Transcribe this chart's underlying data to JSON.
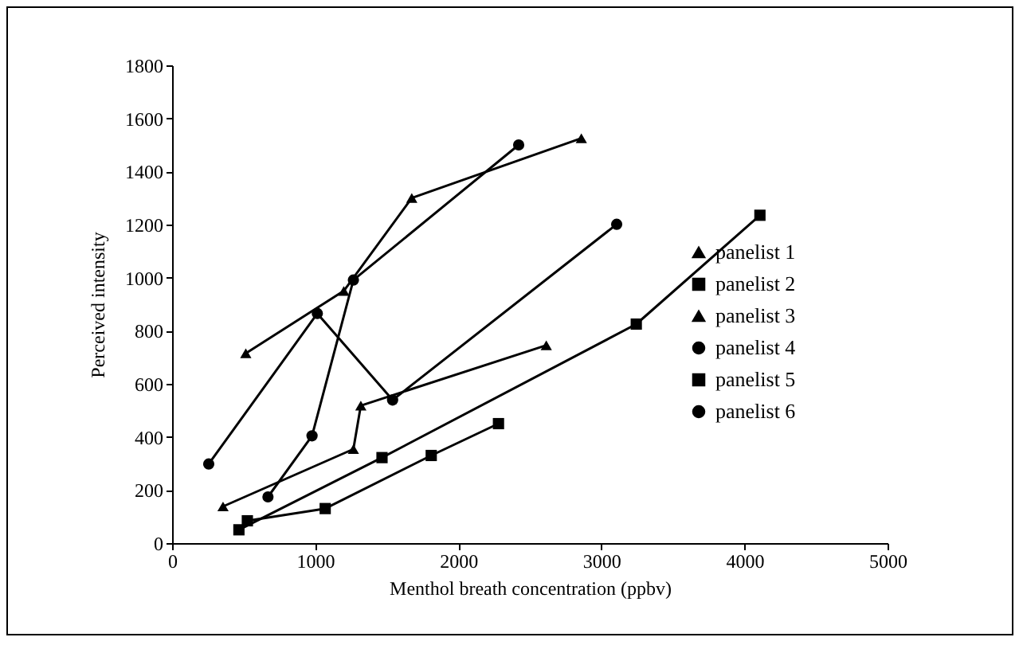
{
  "chart_data": {
    "type": "line",
    "xlabel": "Menthol breath concentration (ppbv)",
    "ylabel": "Perceived intensity",
    "xlim": [
      0,
      5000
    ],
    "xticks": [
      0,
      {
        "value": 1000,
        "label": "1000"
      },
      {
        "value": 2000,
        "label": "2000"
      },
      {
        "value": 3000,
        "label": "3000"
      },
      {
        "value": 4000,
        "label": "4000"
      },
      {
        "value": 5000,
        "label": "5000"
      }
    ],
    "ylim": [
      0,
      1800
    ],
    "yticks": [
      0,
      200,
      400,
      600,
      800,
      {
        "value": 1000,
        "label": "1000"
      },
      {
        "value": 1200,
        "label": "1200"
      },
      {
        "value": 1400,
        "label": "1400"
      },
      {
        "value": 1600,
        "label": "1600"
      },
      {
        "value": 1800,
        "label": "1800"
      }
    ],
    "grid": false,
    "legend": "right",
    "line_style": "solid",
    "series": [
      {
        "name": "panelist 1",
        "color": "#000000",
        "marker": "triangle",
        "x": [
          515,
          1200,
          1675,
          2860
        ],
        "values": [
          715,
          950,
          1300,
          1525
        ]
      },
      {
        "name": "panelist 2",
        "color": "#000000",
        "marker": "square",
        "x": [
          467,
          1467,
          3244,
          4108
        ],
        "values": [
          50,
          322,
          825,
          1235
        ]
      },
      {
        "name": "panelist 3",
        "color": "#000000",
        "marker": "triangle",
        "x": [
          356,
          1267,
          1319,
          2615
        ],
        "values": [
          138,
          354,
          518,
          745
        ]
      },
      {
        "name": "panelist 4",
        "color": "#000000",
        "marker": "circle",
        "x": [
          670,
          978,
          1267,
          2422
        ],
        "values": [
          174,
          404,
          991,
          1500
        ]
      },
      {
        "name": "panelist 5",
        "color": "#000000",
        "marker": "square",
        "x": [
          526,
          1070,
          1811,
          2281
        ],
        "values": [
          84,
          130,
          330,
          450
        ]
      },
      {
        "name": "panelist 6",
        "color": "#000000",
        "marker": "circle",
        "x": [
          256,
          1015,
          1541,
          3107
        ],
        "values": [
          298,
          865,
          539,
          1201
        ]
      }
    ]
  }
}
